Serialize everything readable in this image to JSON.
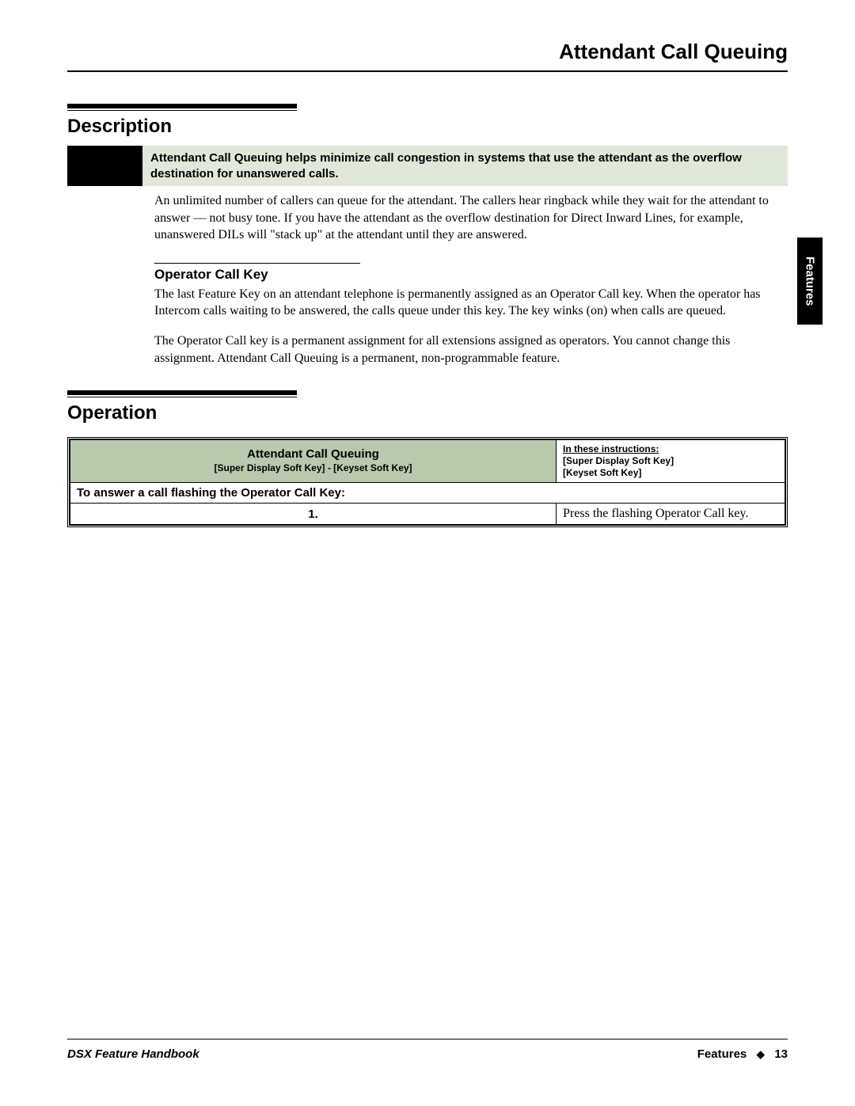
{
  "page": {
    "title": "Attendant Call Queuing",
    "side_tab": "Features"
  },
  "description": {
    "heading": "Description",
    "callout": "Attendant Call Queuing helps minimize call congestion in systems that use the attendant as the overflow destination for unanswered calls.",
    "body1": "An unlimited number of callers can queue for the attendant. The callers hear ringback while they wait for the attendant to answer — not busy tone. If you have the attendant as the overflow destination for Direct Inward Lines, for example, unanswered DILs will \"stack up\" at the attendant until they are answered.",
    "sub_heading": "Operator Call Key",
    "body2": "The last Feature Key on an attendant telephone is permanently assigned as an Operator Call key. When the operator has Intercom calls waiting to be answered, the calls queue under this key. The key winks (on) when calls are queued.",
    "body3": "The Operator Call key is a permanent assignment for all extensions assigned as operators. You cannot change this assignment. Attendant Call Queuing is a permanent, non-programmable feature."
  },
  "operation": {
    "heading": "Operation",
    "table": {
      "header_left_title": "Attendant Call Queuing",
      "header_left_sub": "[Super Display Soft Key] - [Keyset Soft Key]",
      "header_right_line1": "In these instructions:",
      "header_right_line2": "[Super Display Soft Key]",
      "header_right_line3": "[Keyset Soft Key]",
      "subheader": "To answer a call flashing the Operator Call Key:",
      "rows": [
        {
          "num": "1.",
          "text": "Press the flashing Operator Call key."
        }
      ]
    }
  },
  "footer": {
    "left": "DSX Feature Handbook",
    "right_label": "Features",
    "right_page": "13"
  },
  "colors": {
    "callout_bg": "#dfe8d9",
    "table_header_bg": "#b8c9ae",
    "text": "#000000",
    "bg": "#ffffff"
  }
}
